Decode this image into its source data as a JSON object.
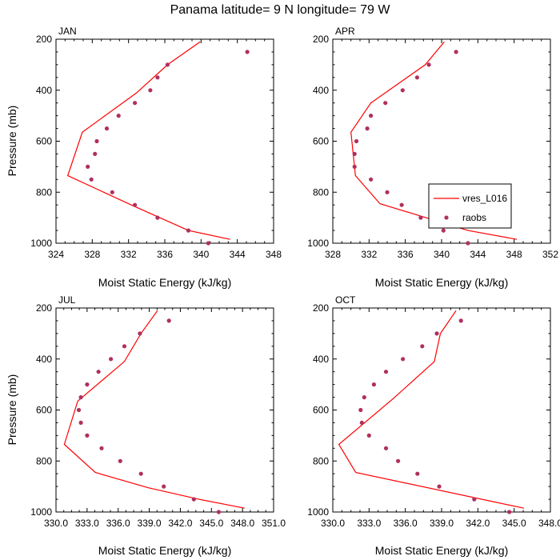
{
  "page_title": "Panama  latitude= 9 N longitude= 79 W",
  "colors": {
    "model": "#ff0000",
    "obs": "#b03060",
    "axis": "#000000"
  },
  "chart_data": [
    {
      "type": "line",
      "panel_label": "JAN",
      "xlabel": "Moist Static Energy (kJ/kg)",
      "ylabel": "Pressure (mb)",
      "xlim": [
        324,
        348
      ],
      "ylim": [
        1000,
        200
      ],
      "xticks": [
        "324",
        "328",
        "332",
        "336",
        "340",
        "344",
        "348"
      ],
      "yticks": [
        "200",
        "400",
        "600",
        "800",
        "1000"
      ],
      "series": [
        {
          "name": "vres_L016",
          "kind": "line",
          "x": [
            339.9,
            336.3,
            332.9,
            326.9,
            325.3,
            332.3,
            338.6,
            343.2
          ],
          "y": [
            210,
            300,
            410,
            565,
            735,
            850,
            950,
            985
          ]
        },
        {
          "name": "raobs",
          "kind": "points",
          "x": [
            345.1,
            336.3,
            335.2,
            334.4,
            332.7,
            330.9,
            329.6,
            328.5,
            328.3,
            327.5,
            327.9,
            330.2,
            332.7,
            335.2,
            338.6,
            340.8
          ],
          "y": [
            250,
            300,
            350,
            400,
            450,
            500,
            550,
            600,
            650,
            700,
            750,
            800,
            850,
            900,
            950,
            1000
          ]
        }
      ]
    },
    {
      "type": "line",
      "panel_label": "APR",
      "xlabel": "Moist Static Energy (kJ/kg)",
      "ylabel": "",
      "xlim": [
        328,
        352
      ],
      "ylim": [
        1000,
        200
      ],
      "xticks": [
        "328",
        "332",
        "336",
        "340",
        "344",
        "348",
        "352"
      ],
      "yticks": [
        "200",
        "400",
        "600",
        "800",
        "1000"
      ],
      "legend": {
        "placement": "right",
        "entries": [
          "vres_L016",
          "raobs"
        ]
      },
      "series": [
        {
          "name": "vres_L016",
          "kind": "line",
          "x": [
            340.3,
            338.2,
            332.2,
            330.0,
            330.5,
            333.2,
            342.9,
            348.3
          ],
          "y": [
            210,
            300,
            450,
            565,
            735,
            845,
            950,
            985
          ]
        },
        {
          "name": "raobs",
          "kind": "points",
          "x": [
            341.6,
            338.6,
            337.3,
            335.7,
            333.8,
            332.2,
            331.8,
            330.6,
            330.4,
            330.4,
            332.2,
            334.0,
            335.6,
            337.7,
            340.2,
            342.9
          ],
          "y": [
            250,
            300,
            350,
            400,
            450,
            500,
            550,
            600,
            650,
            700,
            750,
            800,
            850,
            900,
            950,
            1000
          ]
        }
      ]
    },
    {
      "type": "line",
      "panel_label": "JUL",
      "xlabel": "Moist Static Energy (kJ/kg)",
      "ylabel": "Pressure (mb)",
      "xlim": [
        330,
        351
      ],
      "ylim": [
        1000,
        200
      ],
      "xticks": [
        "330.0",
        "333.0",
        "336.0",
        "339.0",
        "342.0",
        "345.0",
        "348.0",
        "351.0"
      ],
      "yticks": [
        "200",
        "400",
        "600",
        "800",
        "1000"
      ],
      "series": [
        {
          "name": "vres_L016",
          "kind": "line",
          "x": [
            339.8,
            338.2,
            336.6,
            332.1,
            330.8,
            333.8,
            338.9,
            343.8,
            348.2
          ],
          "y": [
            210,
            300,
            410,
            565,
            735,
            845,
            905,
            950,
            985
          ]
        },
        {
          "name": "raobs",
          "kind": "points",
          "x": [
            340.9,
            338.1,
            336.6,
            335.3,
            334.1,
            333.0,
            332.4,
            332.2,
            332.4,
            333.0,
            334.4,
            336.2,
            338.2,
            340.4,
            343.3,
            345.7
          ],
          "y": [
            250,
            300,
            350,
            400,
            450,
            500,
            550,
            600,
            650,
            700,
            750,
            800,
            850,
            900,
            950,
            1000
          ]
        }
      ]
    },
    {
      "type": "line",
      "panel_label": "OCT",
      "xlabel": "Moist Static Energy (kJ/kg)",
      "ylabel": "",
      "xlim": [
        330,
        348
      ],
      "ylim": [
        1000,
        200
      ],
      "xticks": [
        "330.0",
        "333.0",
        "336.0",
        "339.0",
        "342.0",
        "345.0",
        "348.0"
      ],
      "yticks": [
        "200",
        "400",
        "600",
        "800",
        "1000"
      ],
      "series": [
        {
          "name": "vres_L016",
          "kind": "line",
          "x": [
            340.2,
            338.9,
            338.4,
            335.0,
            330.5,
            331.9,
            345.8
          ],
          "y": [
            210,
            300,
            410,
            555,
            735,
            845,
            985
          ]
        },
        {
          "name": "raobs",
          "kind": "points",
          "x": [
            340.6,
            338.6,
            337.4,
            335.8,
            334.4,
            333.4,
            332.6,
            332.3,
            332.4,
            333.0,
            334.4,
            335.4,
            337.0,
            338.8,
            341.7,
            344.6
          ],
          "y": [
            250,
            300,
            350,
            400,
            450,
            500,
            550,
            600,
            650,
            700,
            750,
            800,
            850,
            900,
            950,
            1000
          ]
        }
      ]
    }
  ]
}
